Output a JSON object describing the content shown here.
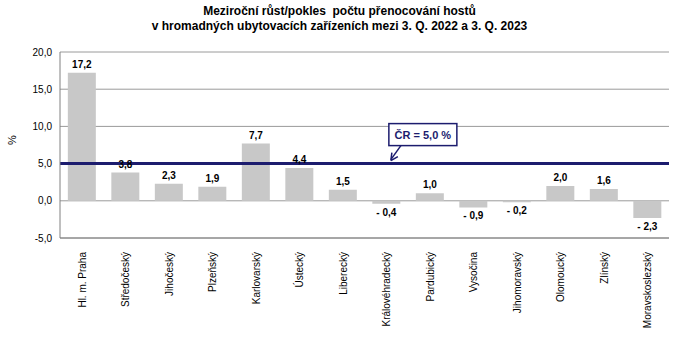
{
  "chart_data": {
    "type": "bar",
    "title": "Meziroční růst/pokles  počtu přenocování hostů\nv hromadných ubytovacích zařízeních mezi 3. Q. 2022 a 3. Q. 2023",
    "y_label": "%",
    "categories": [
      "Hl. m. Praha",
      "Středočeský",
      "Jihočeský",
      "Plzeňský",
      "Karlovarský",
      "Ústecký",
      "Liberecký",
      "Královéhradecký",
      "Pardubický",
      "Vysočina",
      "Jihomoravský",
      "Olomoucký",
      "Zlínský",
      "Moravskoslezský"
    ],
    "values": [
      17.2,
      3.8,
      2.3,
      1.9,
      7.7,
      4.4,
      1.5,
      -0.4,
      1.0,
      -0.9,
      -0.2,
      2.0,
      1.6,
      -2.3
    ],
    "value_labels": [
      "17,2",
      "3,8",
      "2,3",
      "1,9",
      "7,7",
      "4,4",
      "1,5",
      "- 0,4",
      "1,0",
      "- 0,9",
      "- 0,2",
      "2,0",
      "1,6",
      "- 2,3"
    ],
    "color": "#c8c8c8",
    "data_labels": true,
    "grid": true,
    "ylim": [
      -5,
      20
    ],
    "yticks": [
      {
        "value": -5,
        "label": "-5,0"
      },
      {
        "value": 0,
        "label": "0,0"
      },
      {
        "value": 5,
        "label": "5,0"
      },
      {
        "value": 10,
        "label": "10,0"
      },
      {
        "value": 15,
        "label": "15,0"
      },
      {
        "value": 20,
        "label": "20,0"
      }
    ],
    "annotations": [
      {
        "text": "ČR = 5,0 %",
        "y": 5.0,
        "color": "#1c1c6e"
      }
    ]
  }
}
